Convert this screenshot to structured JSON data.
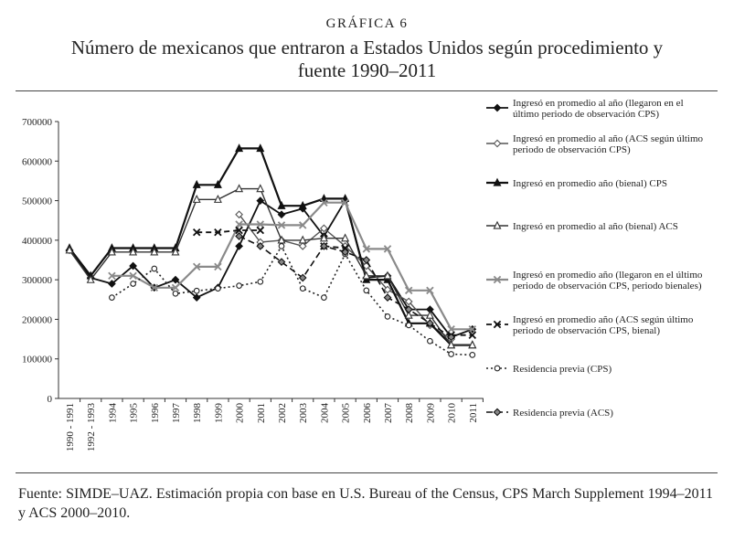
{
  "header": {
    "kicker": "GRÁFICA 6",
    "title": "Número de mexicanos que entraron a Estados Unidos según procedimiento y fuente 1990–2011"
  },
  "footer": {
    "source": "Fuente: SIMDE–UAZ. Estimación propia con base en U.S. Bureau of the Census, CPS March Supplement 1994–2011 y ACS 2000–2010."
  },
  "chart_data": {
    "type": "line",
    "title": "Número de mexicanos que entraron a Estados Unidos según procedimiento y fuente 1990–2011",
    "xlabel": "",
    "ylabel": "",
    "categories": [
      "1990 - 1991",
      "1992 - 1993",
      "1994",
      "1995",
      "1996",
      "1997",
      "1998",
      "1999",
      "2000",
      "2001",
      "2002",
      "2003",
      "2004",
      "2005",
      "2006",
      "2007",
      "2008",
      "2009",
      "2010",
      "2011"
    ],
    "ylim": [
      0,
      700000
    ],
    "yticks": [
      "0",
      "100000",
      "200000",
      "300000",
      "400000",
      "500000",
      "600000",
      "700000"
    ],
    "grid": false,
    "legend_position": "right",
    "series": [
      {
        "name": "Ingresó en promedio al año (llegaron en el último periodo de observación CPS)",
        "color": "#111111",
        "stroke_width": 1.8,
        "dash": "",
        "marker": "diamond",
        "marker_fill": "#111111",
        "values": [
          375000,
          305000,
          290000,
          335000,
          280000,
          300000,
          255000,
          280000,
          385000,
          500000,
          465000,
          480000,
          410000,
          500000,
          305000,
          310000,
          225000,
          225000,
          155000,
          175000
        ]
      },
      {
        "name": "Ingresó en promedio al año (ACS según último periodo de observación CPS)",
        "color": "#555555",
        "stroke_width": 1.4,
        "dash": "",
        "marker": "diamond",
        "marker_fill": "#ffffff",
        "values": [
          null,
          null,
          null,
          null,
          null,
          null,
          null,
          null,
          465000,
          395000,
          400000,
          385000,
          430000,
          385000,
          335000,
          275000,
          245000,
          185000,
          150000,
          null
        ]
      },
      {
        "name": "Ingresó en promedio año (bienal) CPS",
        "color": "#111111",
        "stroke_width": 2.2,
        "dash": "",
        "marker": "triangle",
        "marker_fill": "#111111",
        "values": [
          380000,
          310000,
          380000,
          380000,
          380000,
          380000,
          540000,
          540000,
          632000,
          632000,
          487000,
          487000,
          505000,
          505000,
          300000,
          300000,
          190000,
          190000,
          135000,
          135000
        ]
      },
      {
        "name": "Ingresó en promedio al año (bienal) ACS",
        "color": "#333333",
        "stroke_width": 1.4,
        "dash": "",
        "marker": "triangle",
        "marker_fill": "#ffffff",
        "values": [
          375000,
          300000,
          370000,
          370000,
          370000,
          370000,
          503000,
          503000,
          530000,
          530000,
          400000,
          400000,
          405000,
          405000,
          310000,
          310000,
          210000,
          210000,
          135000,
          135000
        ]
      },
      {
        "name": "Ingresó en promedio año (llegaron en el último periodo de observación CPS, periodo bienales)",
        "color": "#8a8a8a",
        "stroke_width": 2.2,
        "dash": "",
        "marker": "x",
        "marker_fill": "#8a8a8a",
        "values": [
          null,
          null,
          310000,
          310000,
          280000,
          280000,
          333000,
          333000,
          440000,
          440000,
          438000,
          438000,
          495000,
          495000,
          378000,
          378000,
          273000,
          273000,
          175000,
          175000
        ]
      },
      {
        "name": "Ingresó en promedio año (ACS según último periodo de observación CPS, bienal)",
        "color": "#111111",
        "stroke_width": 1.8,
        "dash": "6 4",
        "marker": "x",
        "marker_fill": "#111111",
        "values": [
          null,
          null,
          null,
          null,
          null,
          null,
          420000,
          420000,
          425000,
          425000,
          null,
          null,
          385000,
          380000,
          null,
          null,
          null,
          null,
          160000,
          160000
        ]
      },
      {
        "name": "Residencia previa (CPS)",
        "color": "#222222",
        "stroke_width": 1.6,
        "dash": "2 3",
        "marker": "circle",
        "marker_fill": "#ffffff",
        "values": [
          null,
          null,
          255000,
          290000,
          328000,
          265000,
          272000,
          278000,
          285000,
          295000,
          385000,
          278000,
          255000,
          365000,
          273000,
          207000,
          185000,
          145000,
          112000,
          110000
        ]
      },
      {
        "name": "Residencia previa (ACS)",
        "color": "#111111",
        "stroke_width": 1.6,
        "dash": "7 4",
        "marker": "diamond",
        "marker_fill": "#888888",
        "values": [
          null,
          null,
          null,
          null,
          null,
          null,
          null,
          null,
          410000,
          385000,
          345000,
          305000,
          385000,
          370000,
          350000,
          255000,
          225000,
          190000,
          155000,
          null
        ]
      }
    ]
  }
}
